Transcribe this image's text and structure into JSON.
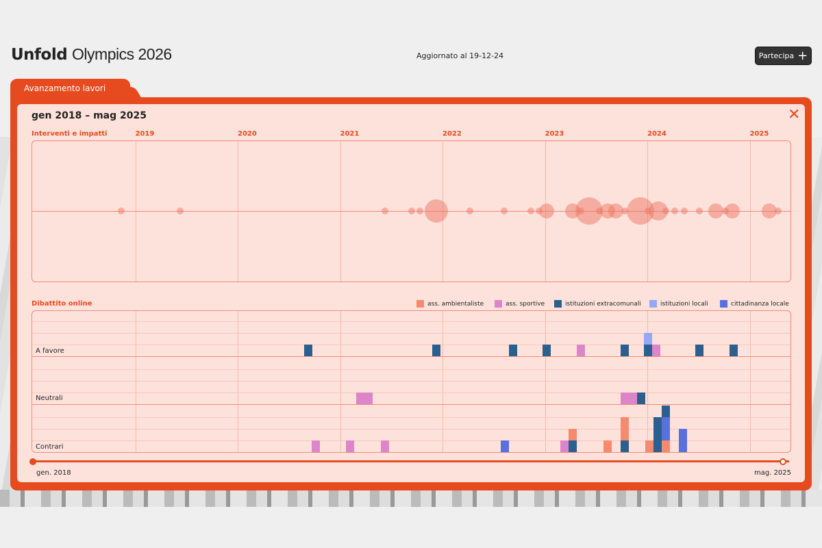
{
  "header": {
    "logo_bold": "Unfold",
    "logo_rest": "Olympics 2026",
    "updated": "Aggiornato al 19-12-24",
    "cta": "Partecipa"
  },
  "tab": "Avanzamento lavori",
  "range_title": "gen 2018 – mag 2025",
  "slider": {
    "start_label": "gen. 2018",
    "end_label": "mag. 2025"
  },
  "colors": {
    "accent": "#e64a1e",
    "panel_bg": "#fde2dc"
  },
  "chart_data": [
    {
      "type": "scatter",
      "title": "Interventi e impatti",
      "x_unit": "year",
      "xlim": [
        2018,
        2025.42
      ],
      "x_ticks": [
        "2019",
        "2020",
        "2021",
        "2022",
        "2023",
        "2024",
        "2025"
      ],
      "points": [
        [
          2018.86,
          1
        ],
        [
          2019.44,
          1
        ],
        [
          2021.44,
          1
        ],
        [
          2021.7,
          1
        ],
        [
          2021.78,
          1
        ],
        [
          2021.94,
          5
        ],
        [
          2022.27,
          1
        ],
        [
          2022.6,
          1
        ],
        [
          2022.86,
          1
        ],
        [
          2022.94,
          1
        ],
        [
          2023.02,
          3
        ],
        [
          2023.27,
          3
        ],
        [
          2023.35,
          1
        ],
        [
          2023.43,
          6
        ],
        [
          2023.53,
          1
        ],
        [
          2023.61,
          3
        ],
        [
          2023.69,
          3
        ],
        [
          2023.78,
          1
        ],
        [
          2023.93,
          6
        ],
        [
          2024.01,
          1
        ],
        [
          2024.11,
          4
        ],
        [
          2024.18,
          1
        ],
        [
          2024.27,
          1
        ],
        [
          2024.36,
          1
        ],
        [
          2024.51,
          1
        ],
        [
          2024.67,
          3
        ],
        [
          2024.76,
          1
        ],
        [
          2024.83,
          3
        ],
        [
          2025.19,
          3
        ],
        [
          2025.28,
          1
        ]
      ]
    },
    {
      "type": "bar",
      "title": "Dibattito online",
      "stacked": true,
      "x_unit": "year",
      "xlim": [
        2018,
        2025.42
      ],
      "ylim_per_row": [
        0,
        4
      ],
      "rows": [
        "A favore",
        "Neutrali",
        "Contrari"
      ],
      "legend": [
        {
          "key": "amb",
          "label": "ass. ambientaliste",
          "color": "#f58a6f"
        },
        {
          "key": "spo",
          "label": "ass. sportive",
          "color": "#dc86c9"
        },
        {
          "key": "ext",
          "label": "istituzioni extracomunali",
          "color": "#2b5f8e"
        },
        {
          "key": "loc",
          "label": "istituzioni locali",
          "color": "#94a8f5"
        },
        {
          "key": "cit",
          "label": "cittadinanza locale",
          "color": "#5a6fe0"
        }
      ],
      "bars": [
        {
          "row": 0,
          "x": 2020.69,
          "stack": [
            [
              "ext",
              1
            ]
          ]
        },
        {
          "row": 0,
          "x": 2021.94,
          "stack": [
            [
              "ext",
              1
            ]
          ]
        },
        {
          "row": 0,
          "x": 2022.69,
          "stack": [
            [
              "ext",
              1
            ]
          ]
        },
        {
          "row": 0,
          "x": 2023.02,
          "stack": [
            [
              "ext",
              1
            ]
          ]
        },
        {
          "row": 0,
          "x": 2023.35,
          "stack": [
            [
              "spo",
              1
            ]
          ]
        },
        {
          "row": 0,
          "x": 2023.78,
          "stack": [
            [
              "ext",
              1
            ]
          ]
        },
        {
          "row": 0,
          "x": 2024.01,
          "stack": [
            [
              "ext",
              1
            ],
            [
              "loc",
              1
            ]
          ]
        },
        {
          "row": 0,
          "x": 2024.09,
          "stack": [
            [
              "spo",
              1
            ]
          ]
        },
        {
          "row": 0,
          "x": 2024.51,
          "stack": [
            [
              "ext",
              1
            ]
          ]
        },
        {
          "row": 0,
          "x": 2024.84,
          "stack": [
            [
              "ext",
              1
            ]
          ]
        },
        {
          "row": 1,
          "x": 2021.2,
          "stack": [
            [
              "spo",
              1
            ]
          ]
        },
        {
          "row": 1,
          "x": 2021.28,
          "stack": [
            [
              "spo",
              1
            ]
          ]
        },
        {
          "row": 1,
          "x": 2023.78,
          "stack": [
            [
              "spo",
              1
            ]
          ]
        },
        {
          "row": 1,
          "x": 2023.86,
          "stack": [
            [
              "spo",
              1
            ]
          ]
        },
        {
          "row": 1,
          "x": 2023.94,
          "stack": [
            [
              "ext",
              1
            ]
          ]
        },
        {
          "row": 2,
          "x": 2020.76,
          "stack": [
            [
              "spo",
              1
            ]
          ]
        },
        {
          "row": 2,
          "x": 2021.1,
          "stack": [
            [
              "spo",
              1
            ]
          ]
        },
        {
          "row": 2,
          "x": 2021.44,
          "stack": [
            [
              "spo",
              1
            ]
          ]
        },
        {
          "row": 2,
          "x": 2022.61,
          "stack": [
            [
              "cit",
              1
            ]
          ]
        },
        {
          "row": 2,
          "x": 2023.19,
          "stack": [
            [
              "spo",
              1
            ]
          ]
        },
        {
          "row": 2,
          "x": 2023.27,
          "stack": [
            [
              "ext",
              1
            ],
            [
              "amb",
              1
            ]
          ]
        },
        {
          "row": 2,
          "x": 2023.61,
          "stack": [
            [
              "amb",
              1
            ]
          ]
        },
        {
          "row": 2,
          "x": 2023.78,
          "stack": [
            [
              "ext",
              1
            ],
            [
              "amb",
              2
            ]
          ]
        },
        {
          "row": 2,
          "x": 2024.02,
          "stack": [
            [
              "amb",
              1
            ]
          ]
        },
        {
          "row": 2,
          "x": 2024.1,
          "stack": [
            [
              "ext",
              3
            ]
          ]
        },
        {
          "row": 2,
          "x": 2024.18,
          "stack": [
            [
              "amb",
              1
            ],
            [
              "cit",
              2
            ],
            [
              "ext",
              1
            ]
          ]
        },
        {
          "row": 2,
          "x": 2024.35,
          "stack": [
            [
              "cit",
              2
            ]
          ]
        }
      ]
    }
  ]
}
